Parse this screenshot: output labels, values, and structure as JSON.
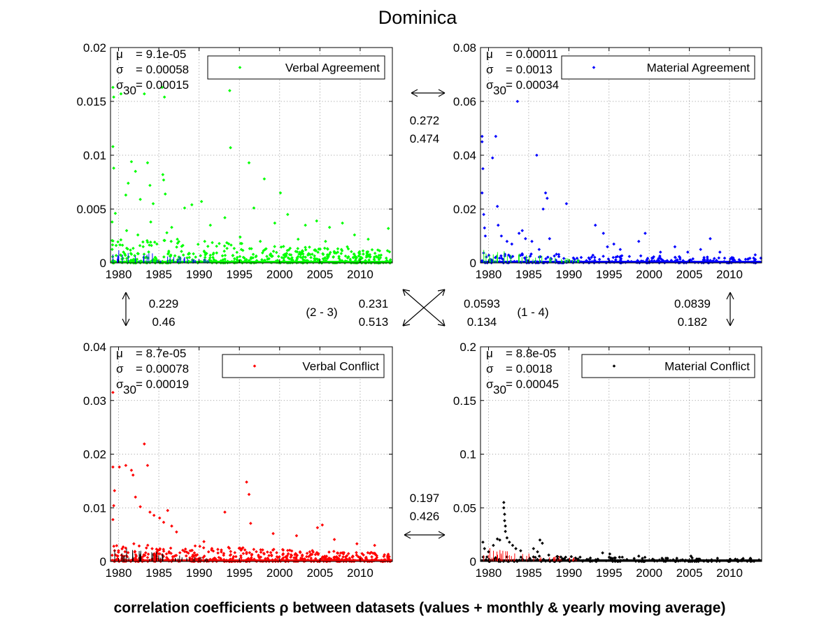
{
  "figure": {
    "title": "Dominica",
    "footer": "correlation coefficients ρ between datasets (values + monthly & yearly moving average)"
  },
  "chart_data": [
    {
      "type": "scatter",
      "legend": "Verbal Agreement",
      "legend_placement": "top-right",
      "color": "#00ff00",
      "secondary_color": "#0000ff",
      "grid": true,
      "xlim": [
        1979,
        2014
      ],
      "ylim": [
        0,
        0.02
      ],
      "xticks": [
        1980,
        1985,
        1990,
        1995,
        2000,
        2005,
        2010
      ],
      "yticks": [
        0,
        0.005,
        0.01,
        0.015,
        0.02
      ],
      "ytick_labels": [
        "0",
        "0.005",
        "0.01",
        "0.015",
        "0.02"
      ],
      "stats": {
        "mu": "= 9.1e-05",
        "sigma": "= 0.00058",
        "sigma30": "= 0.00015"
      },
      "points": [
        [
          1979.3,
          0.0163
        ],
        [
          1979.4,
          0.0154
        ],
        [
          1979.3,
          0.0108
        ],
        [
          1979.4,
          0.0088
        ],
        [
          1979.2,
          0.0038
        ],
        [
          1979.6,
          0.0046
        ],
        [
          1980.3,
          0.0157
        ],
        [
          1980.9,
          0.0063
        ],
        [
          1981.2,
          0.0074
        ],
        [
          1981.6,
          0.0094
        ],
        [
          1982.1,
          0.0085
        ],
        [
          1982.7,
          0.0059
        ],
        [
          1983.2,
          0.0157
        ],
        [
          1983.6,
          0.0093
        ],
        [
          1983.9,
          0.0072
        ],
        [
          1984.3,
          0.0055
        ],
        [
          1985.4,
          0.0163
        ],
        [
          1985.7,
          0.0154
        ],
        [
          1985.5,
          0.0082
        ],
        [
          1985.6,
          0.0077
        ],
        [
          1985.8,
          0.0064
        ],
        [
          1986.6,
          0.0033
        ],
        [
          1988.2,
          0.0051
        ],
        [
          1989.1,
          0.0054
        ],
        [
          1990.3,
          0.0057
        ],
        [
          1991.4,
          0.0035
        ],
        [
          1993.2,
          0.0042
        ],
        [
          1993.8,
          0.016
        ],
        [
          1993.9,
          0.0107
        ],
        [
          1996.2,
          0.0093
        ],
        [
          1996.8,
          0.0051
        ],
        [
          1998.1,
          0.0078
        ],
        [
          1999.4,
          0.0037
        ],
        [
          2000.1,
          0.0065
        ],
        [
          2001.0,
          0.0045
        ],
        [
          2003.2,
          0.0035
        ],
        [
          2004.6,
          0.0039
        ],
        [
          2006.2,
          0.0033
        ],
        [
          2007.8,
          0.0037
        ],
        [
          2009.3,
          0.0026
        ],
        [
          2011.0,
          0.0022
        ],
        [
          2013.5,
          0.0032
        ],
        [
          1981.0,
          0.003
        ],
        [
          1982.4,
          0.0026
        ],
        [
          1984.0,
          0.0038
        ],
        [
          1986.0,
          0.0028
        ],
        [
          1987.3,
          0.0022
        ],
        [
          1990.7,
          0.002
        ],
        [
          1992.5,
          0.0018
        ],
        [
          1995.1,
          0.0024
        ],
        [
          1997.6,
          0.002
        ],
        [
          2002.3,
          0.0022
        ],
        [
          2005.7,
          0.002
        ],
        [
          2008.4,
          0.0015
        ],
        [
          2012.2,
          0.0012
        ]
      ],
      "dense_cluster": {
        "x_range": [
          1979,
          2014
        ],
        "y_max": 0.0025,
        "count": 520
      }
    },
    {
      "type": "scatter",
      "legend": "Material Agreement",
      "legend_placement": "top-right",
      "color": "#0000ff",
      "secondary_color": "#00ff00",
      "grid": true,
      "xlim": [
        1979,
        2014
      ],
      "ylim": [
        0,
        0.08
      ],
      "xticks": [
        1980,
        1985,
        1990,
        1995,
        2000,
        2005,
        2010
      ],
      "yticks": [
        0,
        0.02,
        0.04,
        0.06,
        0.08
      ],
      "ytick_labels": [
        "0",
        "0.02",
        "0.04",
        "0.06",
        "0.08"
      ],
      "stats": {
        "mu": "= 0.00011",
        "sigma": "= 0.0013",
        "sigma30": "= 0.00034"
      },
      "points": [
        [
          1979.2,
          0.047
        ],
        [
          1979.2,
          0.045
        ],
        [
          1979.3,
          0.035
        ],
        [
          1979.2,
          0.026
        ],
        [
          1979.4,
          0.018
        ],
        [
          1979.5,
          0.013
        ],
        [
          1979.6,
          0.01
        ],
        [
          1980.5,
          0.039
        ],
        [
          1980.9,
          0.047
        ],
        [
          1981.1,
          0.021
        ],
        [
          1981.2,
          0.014
        ],
        [
          1981.6,
          0.01
        ],
        [
          1982.3,
          0.008
        ],
        [
          1982.9,
          0.007
        ],
        [
          1983.6,
          0.06
        ],
        [
          1983.8,
          0.011
        ],
        [
          1984.2,
          0.012
        ],
        [
          1984.6,
          0.009
        ],
        [
          1985.4,
          0.008
        ],
        [
          1986.0,
          0.04
        ],
        [
          1986.3,
          0.005
        ],
        [
          1986.8,
          0.02
        ],
        [
          1987.1,
          0.026
        ],
        [
          1987.3,
          0.024
        ],
        [
          1987.6,
          0.009
        ],
        [
          1989.7,
          0.022
        ],
        [
          1993.3,
          0.014
        ],
        [
          1994.3,
          0.011
        ],
        [
          1994.8,
          0.006
        ],
        [
          1995.6,
          0.007
        ],
        [
          1996.4,
          0.005
        ],
        [
          1998.7,
          0.008
        ],
        [
          1999.5,
          0.011
        ],
        [
          2001.4,
          0.004
        ],
        [
          2003.2,
          0.006
        ],
        [
          2004.8,
          0.004
        ],
        [
          2006.4,
          0.005
        ],
        [
          2007.6,
          0.009
        ],
        [
          2008.8,
          0.004
        ],
        [
          2010.3,
          0.002
        ],
        [
          2013.2,
          0.003
        ]
      ],
      "dense_cluster": {
        "x_range": [
          1979,
          2014
        ],
        "y_max": 0.004,
        "count": 260
      }
    },
    {
      "type": "scatter",
      "legend": "Verbal Conflict",
      "legend_placement": "top-right",
      "color": "#ff0000",
      "secondary_color": "#000000",
      "grid": true,
      "xlim": [
        1979,
        2014
      ],
      "ylim": [
        0,
        0.04
      ],
      "xticks": [
        1980,
        1985,
        1990,
        1995,
        2000,
        2005,
        2010
      ],
      "yticks": [
        0,
        0.01,
        0.02,
        0.03,
        0.04
      ],
      "ytick_labels": [
        "0",
        "0.01",
        "0.02",
        "0.03",
        "0.04"
      ],
      "stats": {
        "mu": "= 8.7e-05",
        "sigma": "= 0.00078",
        "sigma30": "= 0.00019"
      },
      "points": [
        [
          1979.3,
          0.0315
        ],
        [
          1979.3,
          0.0176
        ],
        [
          1979.5,
          0.0132
        ],
        [
          1979.4,
          0.0104
        ],
        [
          1979.3,
          0.0078
        ],
        [
          1980.1,
          0.0176
        ],
        [
          1980.9,
          0.0179
        ],
        [
          1981.6,
          0.017
        ],
        [
          1981.8,
          0.0161
        ],
        [
          1982.1,
          0.012
        ],
        [
          1982.7,
          0.0102
        ],
        [
          1983.2,
          0.0219
        ],
        [
          1983.6,
          0.0179
        ],
        [
          1983.9,
          0.0092
        ],
        [
          1984.4,
          0.0086
        ],
        [
          1985.1,
          0.0081
        ],
        [
          1985.6,
          0.0073
        ],
        [
          1986.1,
          0.0095
        ],
        [
          1986.6,
          0.0066
        ],
        [
          1987.2,
          0.0055
        ],
        [
          1990.6,
          0.0037
        ],
        [
          1993.2,
          0.0092
        ],
        [
          1995.9,
          0.0148
        ],
        [
          1996.2,
          0.0125
        ],
        [
          1996.4,
          0.0071
        ],
        [
          1999.2,
          0.0052
        ],
        [
          2002.1,
          0.0048
        ],
        [
          2004.7,
          0.0063
        ],
        [
          2005.3,
          0.0068
        ],
        [
          2006.8,
          0.0041
        ],
        [
          2009.6,
          0.0033
        ],
        [
          2011.8,
          0.003
        ]
      ],
      "dense_cluster": {
        "x_range": [
          1979,
          2014
        ],
        "y_max": 0.0035,
        "count": 520
      }
    },
    {
      "type": "scatter",
      "legend": "Material Conflict",
      "legend_placement": "top-right",
      "color": "#000000",
      "secondary_color": "#ff0000",
      "grid": true,
      "xlim": [
        1979,
        2014
      ],
      "ylim": [
        0,
        0.2
      ],
      "xticks": [
        1980,
        1985,
        1990,
        1995,
        2000,
        2005,
        2010
      ],
      "yticks": [
        0,
        0.05,
        0.1,
        0.15,
        0.2
      ],
      "ytick_labels": [
        "0",
        "0.05",
        "0.1",
        "0.15",
        "0.2"
      ],
      "stats": {
        "mu": "= 8.8e-05",
        "sigma": "= 0.0018",
        "sigma30": "= 0.00045"
      },
      "points": [
        [
          1979.3,
          0.018
        ],
        [
          1979.5,
          0.012
        ],
        [
          1980.0,
          0.009
        ],
        [
          1980.6,
          0.015
        ],
        [
          1981.1,
          0.021
        ],
        [
          1981.4,
          0.02
        ],
        [
          1981.9,
          0.055
        ],
        [
          1981.9,
          0.05
        ],
        [
          1982.0,
          0.044
        ],
        [
          1982.0,
          0.038
        ],
        [
          1982.1,
          0.033
        ],
        [
          1982.1,
          0.028
        ],
        [
          1982.3,
          0.022
        ],
        [
          1982.6,
          0.018
        ],
        [
          1983.0,
          0.015
        ],
        [
          1983.4,
          0.012
        ],
        [
          1984.0,
          0.01
        ],
        [
          1985.6,
          0.012
        ],
        [
          1986.1,
          0.009
        ],
        [
          1986.4,
          0.02
        ],
        [
          1986.7,
          0.017
        ],
        [
          1987.5,
          0.006
        ],
        [
          1989.6,
          0.004
        ],
        [
          1991.4,
          0.004
        ],
        [
          1994.2,
          0.008
        ],
        [
          1995.1,
          0.007
        ],
        [
          1996.3,
          0.004
        ],
        [
          1998.7,
          0.005
        ],
        [
          2001.6,
          0.003
        ],
        [
          2005.2,
          0.005
        ],
        [
          2008.5,
          0.003
        ],
        [
          2012.6,
          0.003
        ]
      ],
      "dense_cluster": {
        "x_range": [
          1979,
          2014
        ],
        "y_max": 0.006,
        "count": 170
      }
    }
  ],
  "correlations": {
    "top": {
      "upper": "0.272",
      "lower": "0.474"
    },
    "left": {
      "upper": "0.229",
      "lower": "0.46"
    },
    "diag_23": {
      "upper": "0.231",
      "lower": "0.513",
      "label": "(2 - 3)"
    },
    "diag_14": {
      "upper": "0.0593",
      "lower": "0.134",
      "label": "(1 - 4)"
    },
    "right": {
      "upper": "0.0839",
      "lower": "0.182"
    },
    "bottom": {
      "upper": "0.197",
      "lower": "0.426"
    }
  }
}
